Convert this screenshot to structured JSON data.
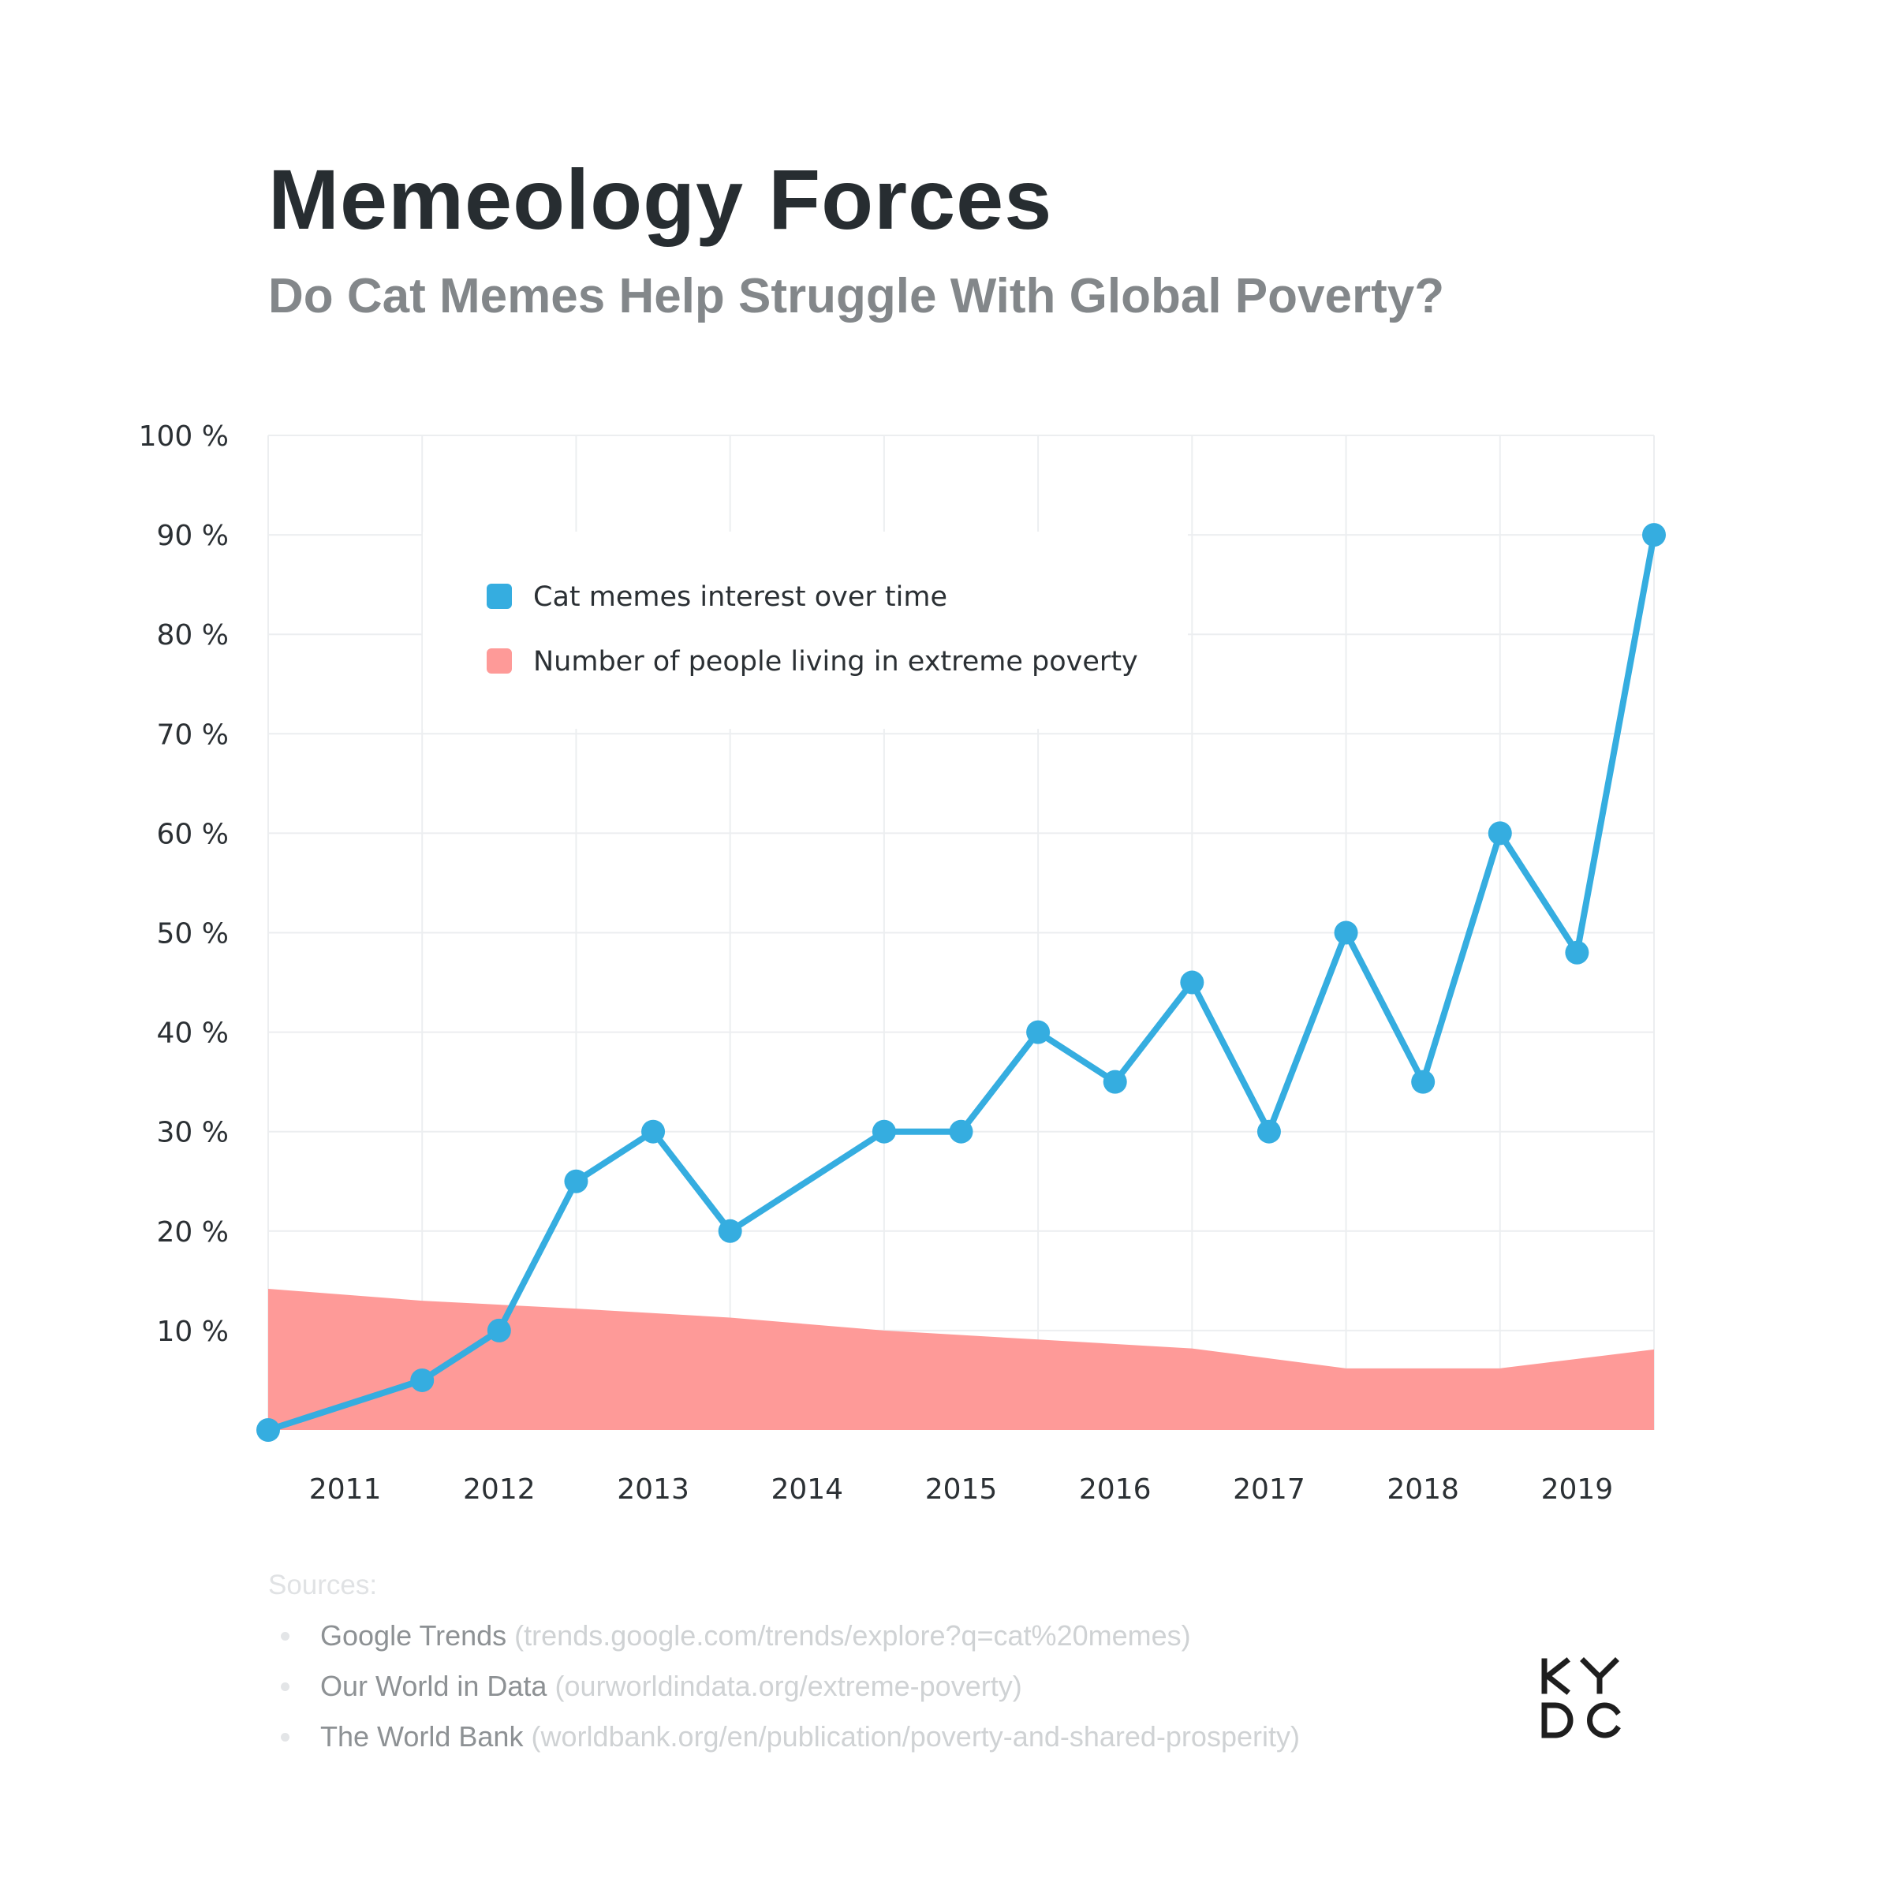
{
  "title": "Memeology Forces",
  "subtitle": "Do Cat Memes Help Struggle With Global Poverty?",
  "colors": {
    "cat_line": "#35ade0",
    "poverty_area": "#fe9a98",
    "grid": "#eceef0",
    "text_dark": "#272d31",
    "text_muted": "#83878a"
  },
  "chart_data": {
    "type": "line",
    "title": "",
    "xlabel": "",
    "ylabel": "",
    "ylim": [
      0,
      100
    ],
    "yticks": [
      "10 %",
      "20 %",
      "30 %",
      "40 %",
      "50 %",
      "60 %",
      "70 %",
      "80 %",
      "90 %",
      "100 %"
    ],
    "ytick_values": [
      10,
      20,
      30,
      40,
      50,
      60,
      70,
      80,
      90,
      100
    ],
    "xlim": [
      2010.5,
      2019.5
    ],
    "xticks": [
      "2011",
      "2012",
      "2013",
      "2014",
      "2015",
      "2016",
      "2017",
      "2018",
      "2019"
    ],
    "xtick_values": [
      2011,
      2012,
      2013,
      2014,
      2015,
      2016,
      2017,
      2018,
      2019
    ],
    "grid": true,
    "legend_position": "top-left",
    "series": [
      {
        "name": "Cat memes interest over time",
        "type": "line",
        "color": "#35ade0",
        "markers": true,
        "x": [
          2010.5,
          2011.5,
          2012.0,
          2012.5,
          2013.0,
          2013.5,
          2014.5,
          2015.0,
          2015.5,
          2016.0,
          2016.5,
          2017.0,
          2017.5,
          2018.0,
          2018.5,
          2019.0,
          2019.5
        ],
        "values": [
          0,
          5,
          10,
          25,
          30,
          20,
          30,
          30,
          40,
          35,
          45,
          30,
          50,
          35,
          60,
          48,
          90
        ]
      },
      {
        "name": "Number of people living in extreme poverty",
        "type": "area",
        "color": "#fe9a98",
        "x": [
          2010.5,
          2011.5,
          2012.5,
          2013.5,
          2014.5,
          2015.5,
          2016.5,
          2017.5,
          2018.5,
          2019.5
        ],
        "values": [
          14.2,
          13,
          12.2,
          11.3,
          10,
          9.1,
          8.2,
          6.2,
          6.2,
          8.1
        ]
      }
    ]
  },
  "sources": {
    "heading": "Sources:",
    "items": [
      {
        "name": "Google Trends",
        "url": "(trends.google.com/trends/explore?q=cat%20memes)"
      },
      {
        "name": "Our World in Data",
        "url": "(ourworldindata.org/extreme-poverty)"
      },
      {
        "name": "The World Bank",
        "url": "(worldbank.org/en/publication/poverty-and-shared-prosperity)"
      }
    ]
  },
  "logo": {
    "name": "kydc-logo",
    "text": "KYDC"
  }
}
